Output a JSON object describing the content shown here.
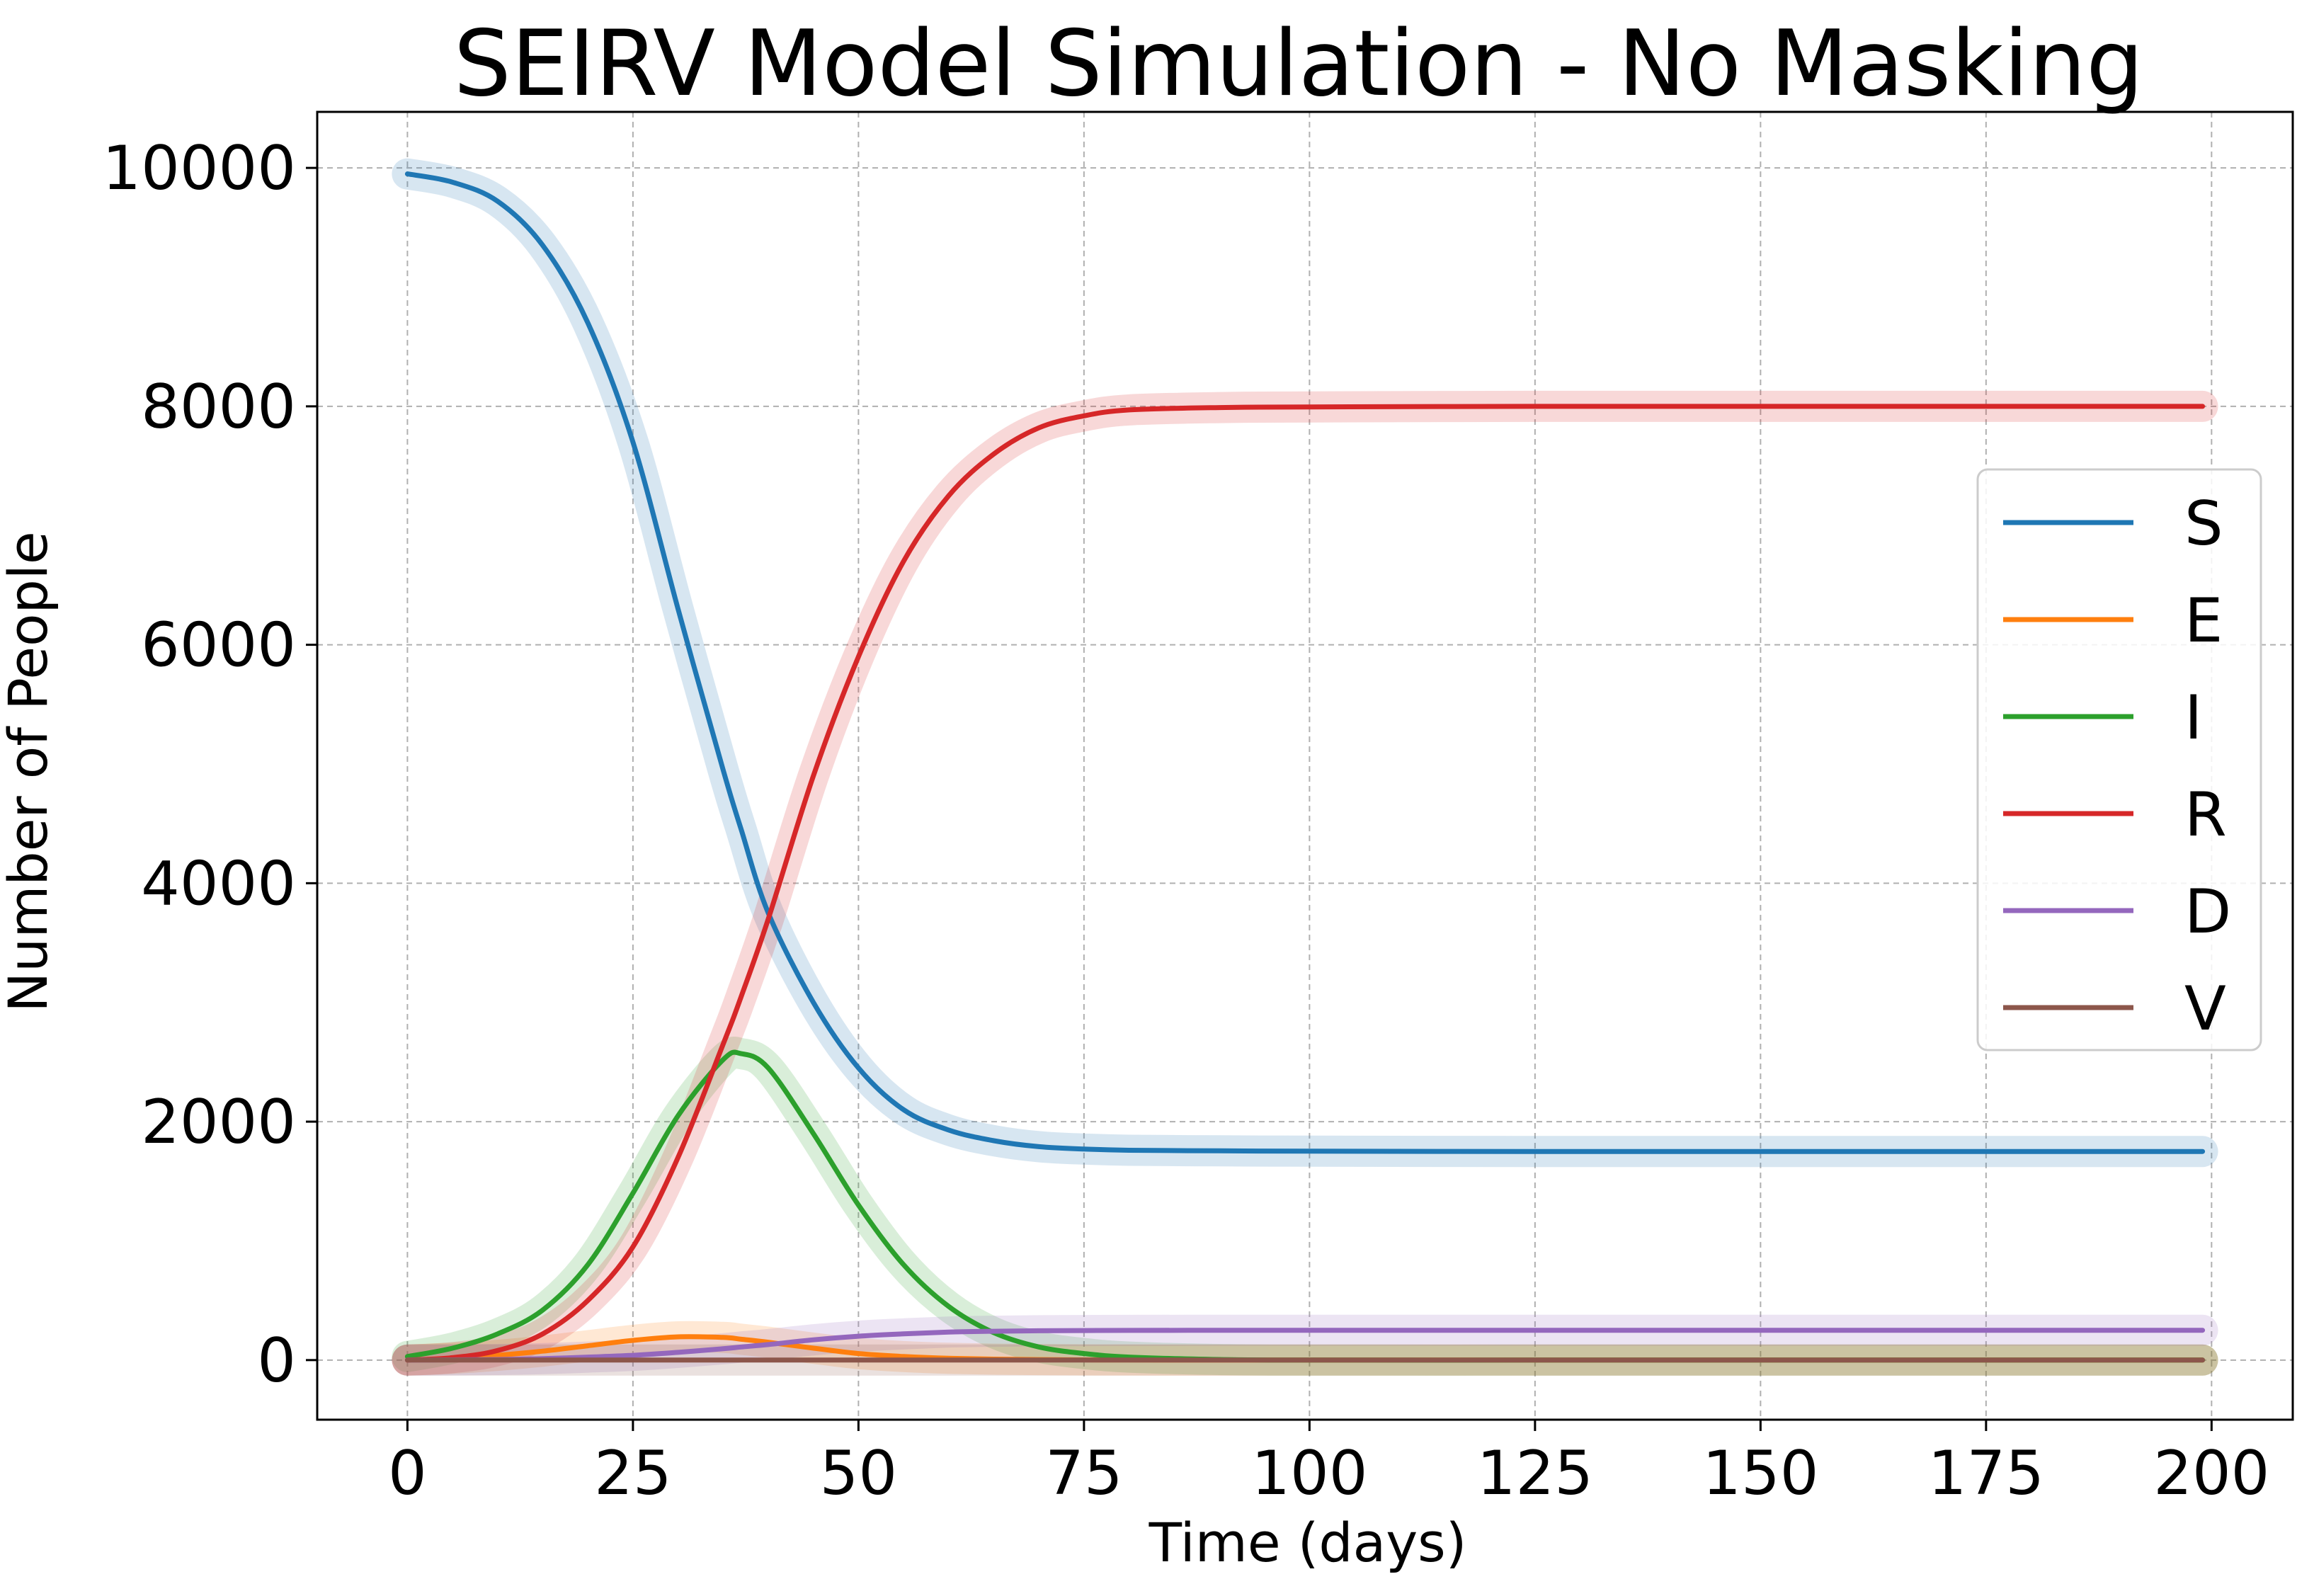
{
  "chart_data": {
    "type": "line",
    "title": "SEIRV Model Simulation - No Masking",
    "xlabel": "Time (days)",
    "ylabel": "Number of People",
    "xlim": [
      -10,
      209
    ],
    "ylim": [
      -500,
      10470
    ],
    "xticks": [
      0,
      25,
      50,
      75,
      100,
      125,
      150,
      175,
      200
    ],
    "yticks": [
      0,
      2000,
      4000,
      6000,
      8000,
      10000
    ],
    "grid": true,
    "legend_position": "center-right",
    "x": [
      0,
      5,
      10,
      15,
      20,
      25,
      30,
      35,
      37,
      40,
      45,
      50,
      55,
      60,
      65,
      70,
      75,
      80,
      90,
      100,
      125,
      150,
      175,
      199
    ],
    "series": [
      {
        "name": "S",
        "color": "#1f77b4",
        "values": [
          9950,
          9880,
          9720,
          9350,
          8700,
          7700,
          6300,
          4950,
          4450,
          3750,
          3000,
          2450,
          2100,
          1930,
          1840,
          1790,
          1770,
          1760,
          1755,
          1752,
          1750,
          1750,
          1750,
          1750
        ]
      },
      {
        "name": "E",
        "color": "#ff7f0e",
        "values": [
          0,
          15,
          40,
          75,
          120,
          165,
          195,
          190,
          175,
          150,
          100,
          55,
          30,
          15,
          8,
          4,
          2,
          1,
          0,
          0,
          0,
          0,
          0,
          0
        ]
      },
      {
        "name": "I",
        "color": "#2ca02c",
        "values": [
          30,
          100,
          220,
          420,
          800,
          1400,
          2050,
          2520,
          2570,
          2450,
          1900,
          1300,
          800,
          450,
          230,
          110,
          55,
          25,
          5,
          0,
          0,
          0,
          0,
          0
        ]
      },
      {
        "name": "R",
        "color": "#d62728",
        "values": [
          0,
          20,
          80,
          220,
          500,
          950,
          1700,
          2650,
          3050,
          3700,
          4900,
          5900,
          6700,
          7250,
          7600,
          7820,
          7920,
          7970,
          7990,
          7995,
          8000,
          8000,
          8000,
          8000
        ]
      },
      {
        "name": "D",
        "color": "#9467bd",
        "values": [
          0,
          2,
          5,
          12,
          25,
          40,
          65,
          95,
          110,
          130,
          170,
          200,
          220,
          235,
          242,
          246,
          248,
          249,
          250,
          250,
          250,
          250,
          250,
          250
        ]
      },
      {
        "name": "V",
        "color": "#8c564b",
        "values": [
          0,
          0,
          0,
          0,
          0,
          0,
          0,
          0,
          0,
          0,
          0,
          0,
          0,
          0,
          0,
          0,
          0,
          0,
          0,
          0,
          0,
          0,
          0,
          0
        ]
      }
    ]
  }
}
